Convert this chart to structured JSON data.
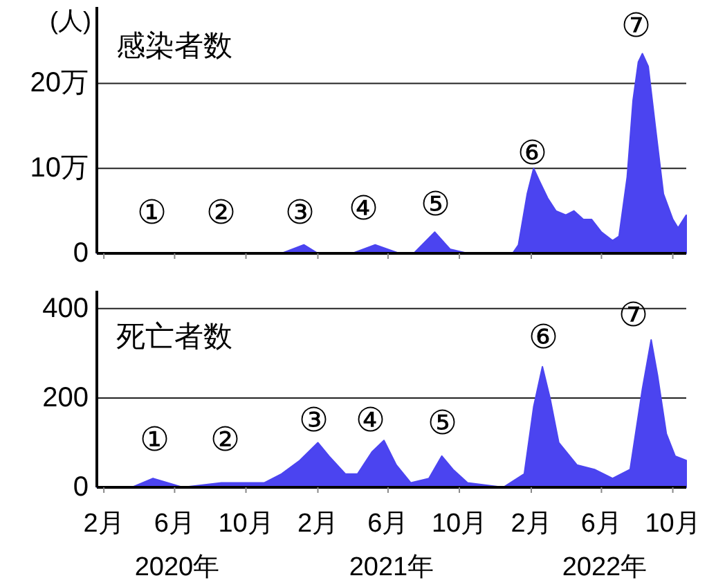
{
  "chart_data": [
    {
      "type": "area",
      "title": "感染者数",
      "ylabel": "(人)",
      "grid": "y",
      "tick_labels": "y",
      "color": "#4b44f0",
      "x": [
        "2020-01-20",
        "2020-04-10",
        "2020-05-20",
        "2020-07-01",
        "2020-08-05",
        "2020-09-20",
        "2020-11-01",
        "2020-12-01",
        "2021-01-08",
        "2021-02-01",
        "2021-03-01",
        "2021-04-01",
        "2021-05-10",
        "2021-06-20",
        "2021-07-15",
        "2021-08-20",
        "2021-09-15",
        "2021-10-15",
        "2021-12-01",
        "2021-12-31",
        "2022-01-10",
        "2022-01-25",
        "2022-02-05",
        "2022-02-15",
        "2022-03-01",
        "2022-03-15",
        "2022-04-01",
        "2022-04-15",
        "2022-05-01",
        "2022-05-15",
        "2022-06-01",
        "2022-06-20",
        "2022-07-01",
        "2022-07-15",
        "2022-07-25",
        "2022-08-03",
        "2022-08-10",
        "2022-08-20",
        "2022-09-01",
        "2022-09-15",
        "2022-10-01",
        "2022-10-10",
        "2022-10-24"
      ],
      "values": [
        0,
        0,
        0,
        0,
        0,
        0,
        0,
        0,
        1,
        0,
        0,
        0,
        1,
        0,
        0,
        2.5,
        0.5,
        0,
        0,
        0,
        1,
        7,
        10,
        8.5,
        6.5,
        5,
        4.5,
        5,
        4,
        4,
        2.5,
        1.5,
        2,
        9,
        18,
        22.5,
        23.5,
        22,
        15,
        7,
        4,
        3,
        4.5
      ],
      "xlim": [
        "2020-01-20",
        "2022-10-24"
      ],
      "ylim": [
        0,
        29
      ],
      "xticks": [
        {
          "value": "2020-02-01",
          "label": null
        },
        {
          "value": "2020-06-01",
          "label": null
        },
        {
          "value": "2020-10-01",
          "label": null
        },
        {
          "value": "2021-02-01",
          "label": null
        },
        {
          "value": "2021-06-01",
          "label": null
        },
        {
          "value": "2021-10-01",
          "label": null
        },
        {
          "value": "2022-02-01",
          "label": null
        },
        {
          "value": "2022-06-01",
          "label": null
        },
        {
          "value": "2022-10-01",
          "label": null
        }
      ],
      "yticks": [
        0,
        {
          "value": 10,
          "label": "10万"
        },
        {
          "value": 20,
          "label": "20万"
        }
      ],
      "annotations": [
        "①",
        "②",
        "③",
        "④",
        "⑤",
        "⑥",
        "⑦"
      ]
    },
    {
      "type": "area",
      "title": "死亡者数",
      "grid": "y",
      "color": "#4b44f0",
      "x": [
        "2020-01-20",
        "2020-03-20",
        "2020-04-25",
        "2020-05-20",
        "2020-06-15",
        "2020-08-20",
        "2020-09-20",
        "2020-11-01",
        "2020-12-01",
        "2021-01-01",
        "2021-02-01",
        "2021-02-20",
        "2021-03-20",
        "2021-04-10",
        "2021-05-05",
        "2021-05-25",
        "2021-06-15",
        "2021-07-10",
        "2021-08-10",
        "2021-09-01",
        "2021-09-20",
        "2021-10-15",
        "2021-12-15",
        "2022-01-20",
        "2022-02-05",
        "2022-02-20",
        "2022-03-05",
        "2022-03-20",
        "2022-04-20",
        "2022-05-20",
        "2022-06-20",
        "2022-07-20",
        "2022-08-10",
        "2022-08-25",
        "2022-09-05",
        "2022-09-20",
        "2022-10-05",
        "2022-10-24"
      ],
      "values": [
        0,
        0,
        20,
        10,
        0,
        10,
        10,
        10,
        30,
        60,
        100,
        70,
        30,
        30,
        80,
        105,
        50,
        10,
        20,
        70,
        40,
        10,
        0,
        30,
        180,
        270,
        200,
        100,
        50,
        40,
        20,
        40,
        220,
        330,
        250,
        120,
        70,
        60
      ],
      "xlim": [
        "2020-01-20",
        "2022-10-24"
      ],
      "ylim": [
        0,
        440
      ],
      "xticks": [
        {
          "value": "2020-02-01",
          "label": "2月"
        },
        {
          "value": "2020-06-01",
          "label": "6月"
        },
        {
          "value": "2020-10-01",
          "label": "10月"
        },
        {
          "value": "2021-02-01",
          "label": "2月"
        },
        {
          "value": "2021-06-01",
          "label": "6月"
        },
        {
          "value": "2021-10-01",
          "label": "10月"
        },
        {
          "value": "2022-02-01",
          "label": "2月"
        },
        {
          "value": "2022-06-01",
          "label": "6月"
        },
        {
          "value": "2022-10-01",
          "label": "10月"
        }
      ],
      "yticks": [
        0,
        200,
        400
      ],
      "annotations": [
        "①",
        "②",
        "③",
        "④",
        "⑤",
        "⑥",
        "⑦",
        "2020年",
        "2021年",
        "2022年"
      ]
    }
  ]
}
